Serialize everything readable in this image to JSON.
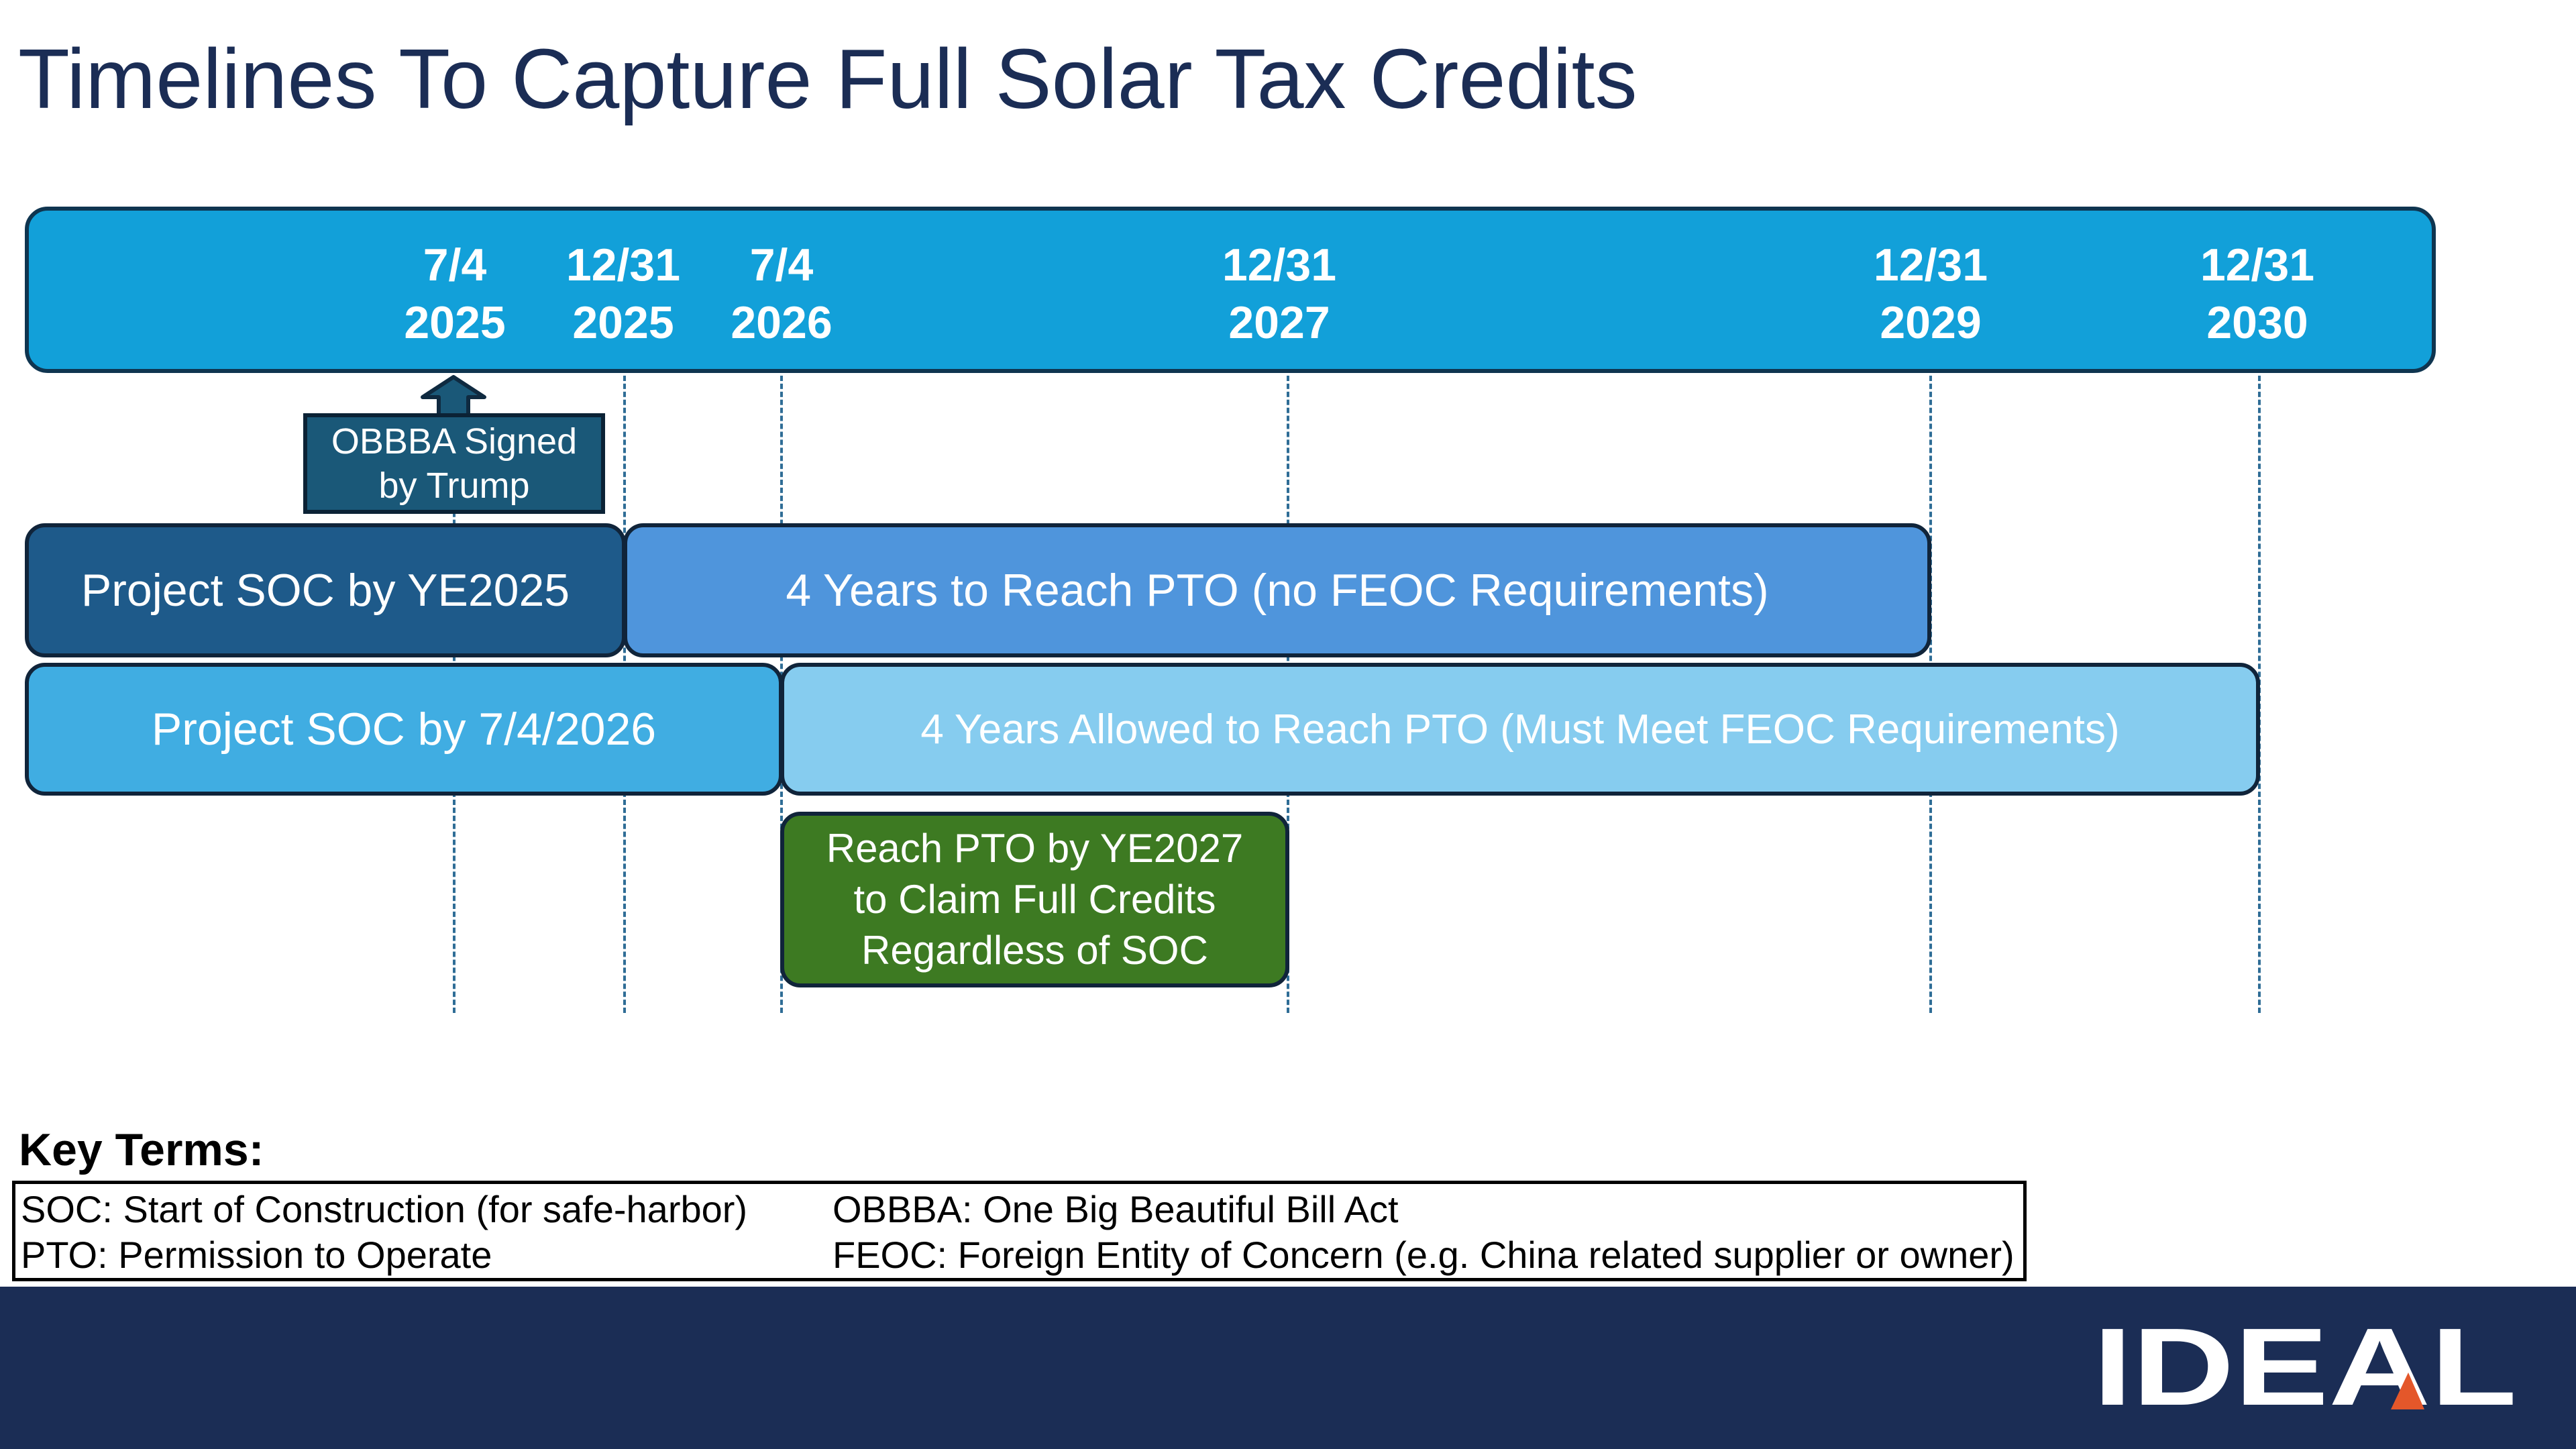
{
  "title": "Timelines To Capture Full Solar Tax Credits",
  "timeline": {
    "dates": [
      {
        "line1": "7/4",
        "line2": "2025"
      },
      {
        "line1": "12/31",
        "line2": "2025"
      },
      {
        "line1": "7/4",
        "line2": "2026"
      },
      {
        "line1": "12/31",
        "line2": "2027"
      },
      {
        "line1": "12/31",
        "line2": "2029"
      },
      {
        "line1": "12/31",
        "line2": "2030"
      }
    ]
  },
  "callout": {
    "line1": "OBBBA Signed",
    "line2": "by Trump"
  },
  "rows": {
    "soc_ye2025": "Project SOC by YE2025",
    "pto_no_feoc": "4 Years to Reach PTO (no FEOC Requirements)",
    "soc_7_4_2026": "Project SOC by 7/4/2026",
    "pto_feoc": "4 Years Allowed to Reach PTO (Must Meet FEOC Requirements)"
  },
  "green_box": {
    "line1": "Reach PTO by YE2027",
    "line2": "to Claim Full Credits",
    "line3": "Regardless of SOC"
  },
  "key_terms": {
    "heading": "Key Terms:",
    "soc": "SOC: Start of Construction (for safe-harbor)",
    "pto": "PTO: Permission to Operate",
    "obbba": "OBBBA: One Big Beautiful Bill Act",
    "feoc": "FEOC: Foreign Entity of Concern (e.g. China related supplier or owner)"
  },
  "logo": {
    "text": "IDEAL"
  },
  "colors": {
    "title": "#1b2d55",
    "timeline": "#12a0d9",
    "soc_ye2025": "#1e5a8a",
    "pto_no_feoc": "#4f95dc",
    "soc_7_4_2026": "#40ade2",
    "pto_feoc": "#86ccef",
    "callout": "#1a5878",
    "green": "#3d7a22",
    "footer": "#1b2d55",
    "logo_accent": "#e4572a"
  }
}
